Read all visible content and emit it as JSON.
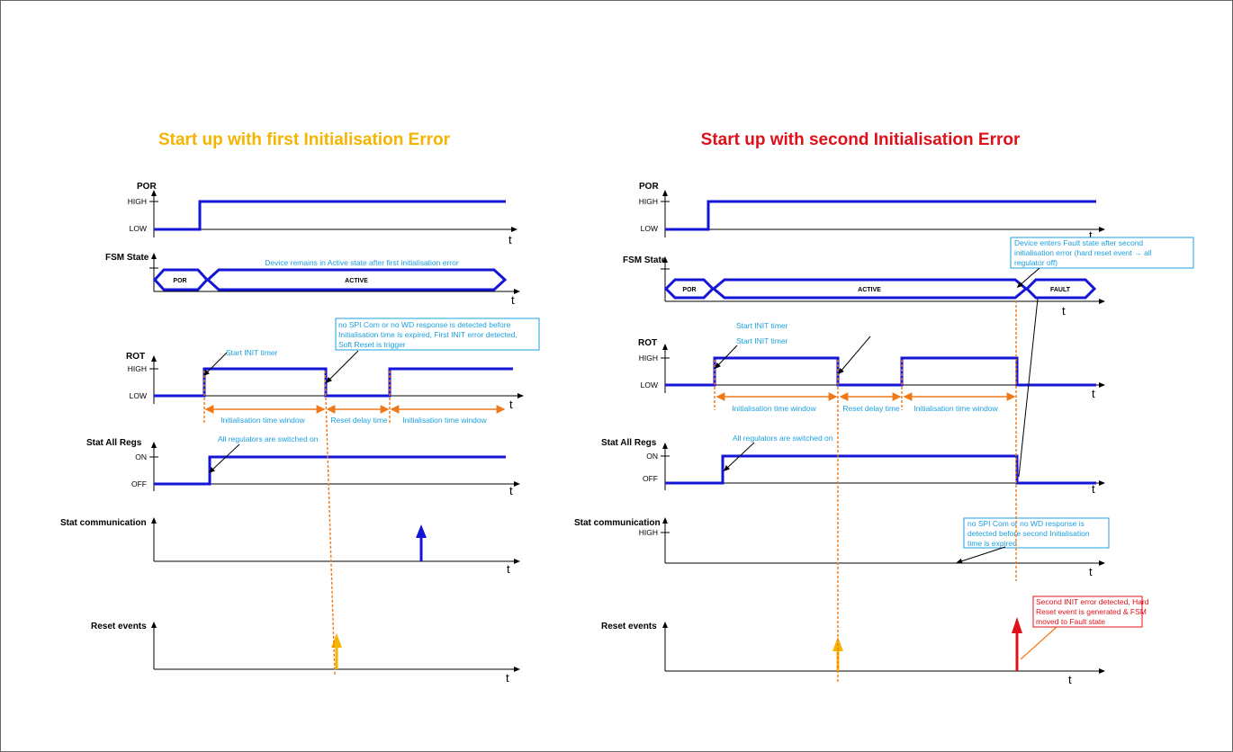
{
  "colors": {
    "left_title": "#f5b400",
    "right_title": "#e0101a",
    "wave": "#1515d8",
    "annotation": "#1ca0e0",
    "window": "#f07818",
    "yellow_arrow": "#f5b400",
    "red_arrow": "#e0101a"
  },
  "left": {
    "title": "Start up with first Initialisation Error",
    "signals": {
      "por": "POR",
      "fsm": "FSM State",
      "rot": "ROT",
      "regs": "Stat All Regs",
      "comm": "Stat communication",
      "reset": "Reset events"
    },
    "levels": {
      "por_high": "HIGH",
      "por_low": "LOW",
      "rot_high": "HIGH",
      "rot_low": "LOW",
      "regs_on": "ON",
      "regs_off": "OFF"
    },
    "time_label": "t",
    "states": {
      "por": "POR",
      "active": "ACTIVE"
    },
    "notes": {
      "fsm_note": "Device remains in Active state after first initialisation error",
      "start_init": "Start INIT timer",
      "error_box": [
        "no SPI Com or no WD response is detected before",
        "Initialisation time is expired, First INIT error detected,",
        "Soft Reset is trigger"
      ],
      "regs_on": "All regulators are switched on"
    },
    "windows": {
      "init1": "Initialisation time window",
      "reset_delay": "Reset delay time",
      "init2": "Initialisation time window"
    }
  },
  "right": {
    "title": "Start up with second Initialisation Error",
    "signals": {
      "por": "POR",
      "fsm": "FSM State",
      "rot": "ROT",
      "regs": "Stat All Regs",
      "comm": "Stat communication",
      "reset": "Reset events"
    },
    "levels": {
      "por_high": "HIGH",
      "por_low": "LOW",
      "rot_high": "HIGH",
      "rot_low": "LOW",
      "regs_on": "ON",
      "regs_off": "OFF",
      "comm_high": "HIGH"
    },
    "time_label": "t",
    "states": {
      "por": "POR",
      "active": "ACTIVE",
      "fault": "FAULT"
    },
    "notes": {
      "fault_box": [
        "Device enters Fault state after second",
        "initialisation error (hard reset event → all",
        "regulator off)"
      ],
      "start_init_1": "Start INIT timer",
      "start_init_2": "Start INIT timer",
      "regs_on": "All regulators are switched on",
      "comm_box": [
        "no SPI Com or no WD response is",
        "detected before second Initialisation",
        "time is expired"
      ],
      "hard_reset_box": [
        "Second INIT error detected, Hard",
        "Reset event is generated & FSM",
        "moved to Fault state"
      ]
    },
    "windows": {
      "init1": "Initialisation time window",
      "reset_delay": "Reset delay time",
      "init2": "Initialisation time window"
    }
  }
}
